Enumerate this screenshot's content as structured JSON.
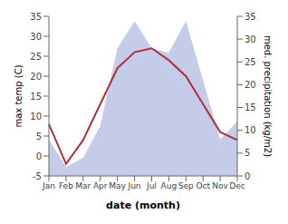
{
  "chart_data": {
    "type": "line",
    "xlabel": "date (month)",
    "ylabel": "max temp (C)",
    "y2label": "med. precipitation (kg/m2)",
    "categories": [
      "Jan",
      "Feb",
      "Mar",
      "Apr",
      "May",
      "Jun",
      "Jul",
      "Aug",
      "Sep",
      "Oct",
      "Nov",
      "Dec"
    ],
    "series": [
      {
        "type": "area",
        "axis": "y2",
        "color": "#c5cce8",
        "values": [
          8,
          2,
          4,
          11,
          28,
          34,
          28,
          27,
          34,
          21,
          8,
          12
        ]
      },
      {
        "type": "line",
        "color": "#b03040",
        "values": [
          8,
          -2,
          4,
          13,
          22,
          26,
          27,
          24,
          20,
          13,
          6,
          4
        ]
      }
    ],
    "ylim": [
      -5,
      35
    ],
    "yticks": [
      -5,
      0,
      5,
      10,
      15,
      20,
      25,
      30,
      35
    ],
    "y2lim": [
      0,
      35
    ],
    "y2ticks": [
      0,
      5,
      10,
      15,
      20,
      25,
      30,
      35
    ]
  }
}
